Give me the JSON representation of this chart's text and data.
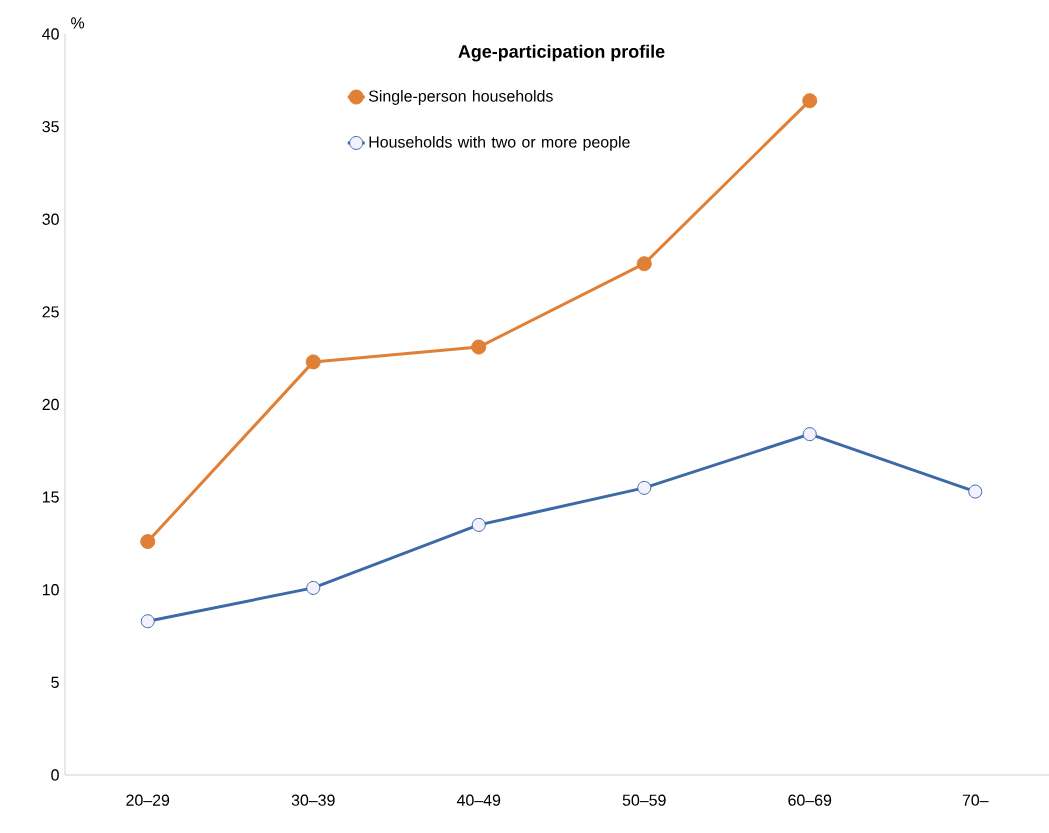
{
  "chart_data": {
    "type": "line",
    "title": "Age-participation profile",
    "ylabel": "%",
    "categories": [
      "20–29",
      "30–39",
      "40–49",
      "50–59",
      "60–69",
      "70–"
    ],
    "series": [
      {
        "name": "Single-person households",
        "color": "#e07f36",
        "marker": "circle",
        "values": [
          12.6,
          22.3,
          23.1,
          27.6,
          36.4,
          null
        ]
      },
      {
        "name": "Households with two or more people",
        "color": "#3c6aa6",
        "marker": "circle",
        "values": [
          8.3,
          10.1,
          13.5,
          15.5,
          18.4,
          15.3
        ]
      }
    ],
    "ylim": [
      0,
      40
    ],
    "yticks": [
      0,
      5,
      10,
      15,
      20,
      25,
      30,
      35,
      40
    ],
    "grid": false,
    "legend": "top left",
    "line_style": "solid"
  }
}
